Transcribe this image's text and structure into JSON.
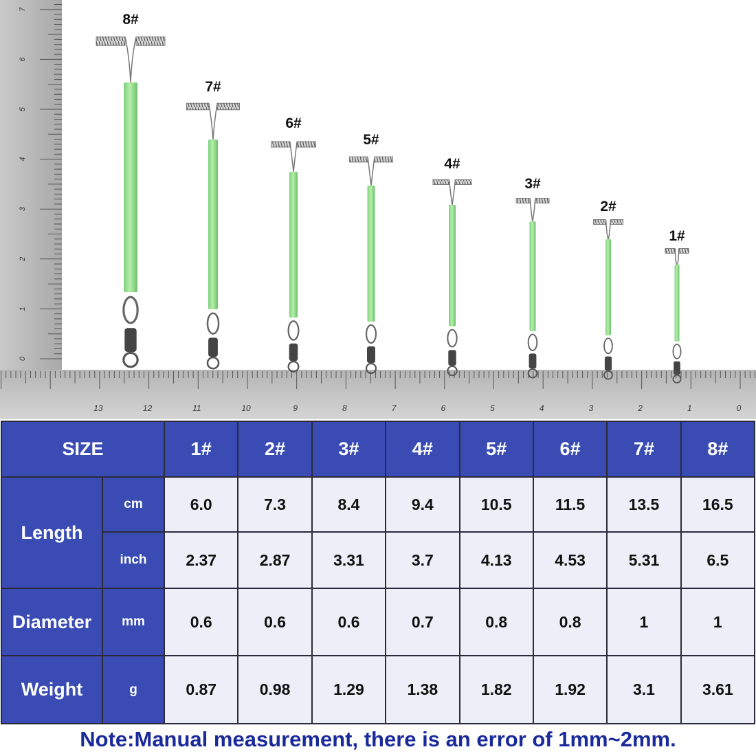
{
  "ruler": {
    "vertical_labels": [
      0,
      1,
      2,
      3,
      4,
      5,
      6,
      7
    ],
    "horizontal_labels": [
      13,
      12,
      11,
      10,
      9,
      8,
      7,
      6,
      5,
      4,
      3,
      2,
      1,
      0
    ]
  },
  "items": [
    {
      "label": "8#"
    },
    {
      "label": "7#"
    },
    {
      "label": "6#"
    },
    {
      "label": "5#"
    },
    {
      "label": "4#"
    },
    {
      "label": "3#"
    },
    {
      "label": "2#"
    },
    {
      "label": "1#"
    }
  ],
  "table": {
    "size_label": "SIZE",
    "sizes": [
      "1#",
      "2#",
      "3#",
      "4#",
      "5#",
      "6#",
      "7#",
      "8#"
    ],
    "groups": [
      {
        "label": "Length",
        "rows": [
          {
            "unit": "cm",
            "values": [
              "6.0",
              "7.3",
              "8.4",
              "9.4",
              "10.5",
              "11.5",
              "13.5",
              "16.5"
            ]
          },
          {
            "unit": "inch",
            "values": [
              "2.37",
              "2.87",
              "3.31",
              "3.7",
              "4.13",
              "4.53",
              "5.31",
              "6.5"
            ]
          }
        ]
      },
      {
        "label": "Diameter",
        "rows": [
          {
            "unit": "mm",
            "values": [
              "0.6",
              "0.6",
              "0.6",
              "0.7",
              "0.8",
              "0.8",
              "1",
              "1"
            ]
          }
        ]
      },
      {
        "label": "Weight",
        "rows": [
          {
            "unit": "g",
            "values": [
              "0.87",
              "0.98",
              "1.29",
              "1.38",
              "1.82",
              "1.92",
              "3.1",
              "3.61"
            ]
          }
        ]
      }
    ]
  },
  "note": "Note:Manual measurement, there is an error of 1mm~2mm."
}
